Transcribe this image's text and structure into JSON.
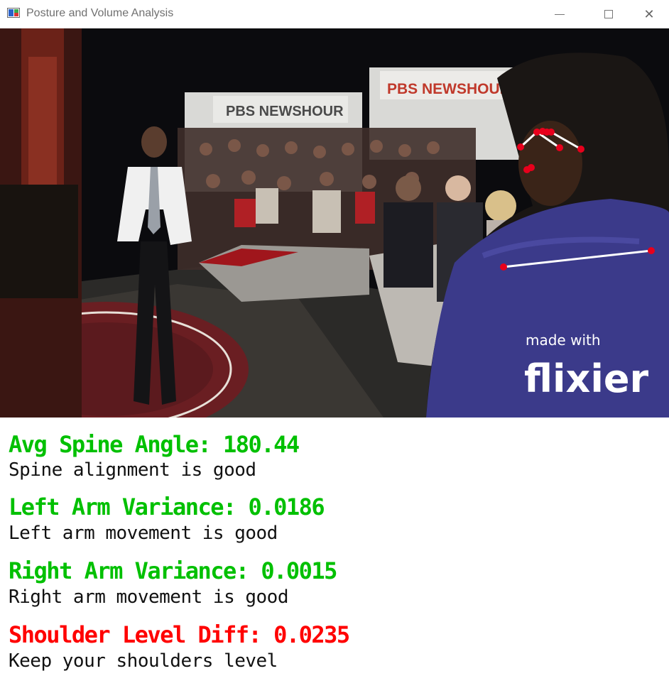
{
  "window": {
    "title": "Posture and Volume Analysis",
    "icon": "app-window-icon",
    "controls": {
      "minimize_icon": "minimize-icon",
      "maximize_icon": "maximize-icon",
      "close_icon": "close-icon",
      "close_glyph": "✕"
    }
  },
  "video": {
    "banner_left": "PBS NEWSHOUR",
    "banner_right": "PBS NEWSHOUR",
    "watermark_line1": "made with",
    "watermark_line2": "flixier",
    "pose_colors": {
      "keypoint": "#e8001c",
      "connection": "#ffffff"
    }
  },
  "metrics": [
    {
      "label": "Avg Spine Angle: 180.44",
      "message": "Spine alignment is good",
      "color": "#00c000"
    },
    {
      "label": "Left Arm Variance: 0.0186",
      "message": "Left arm movement is good",
      "color": "#00c000"
    },
    {
      "label": "Right Arm Variance: 0.0015",
      "message": "Right arm movement is good",
      "color": "#00c000"
    },
    {
      "label": "Shoulder Level Diff: 0.0235",
      "message": "Keep your shoulders level",
      "color": "#ff0000"
    }
  ]
}
